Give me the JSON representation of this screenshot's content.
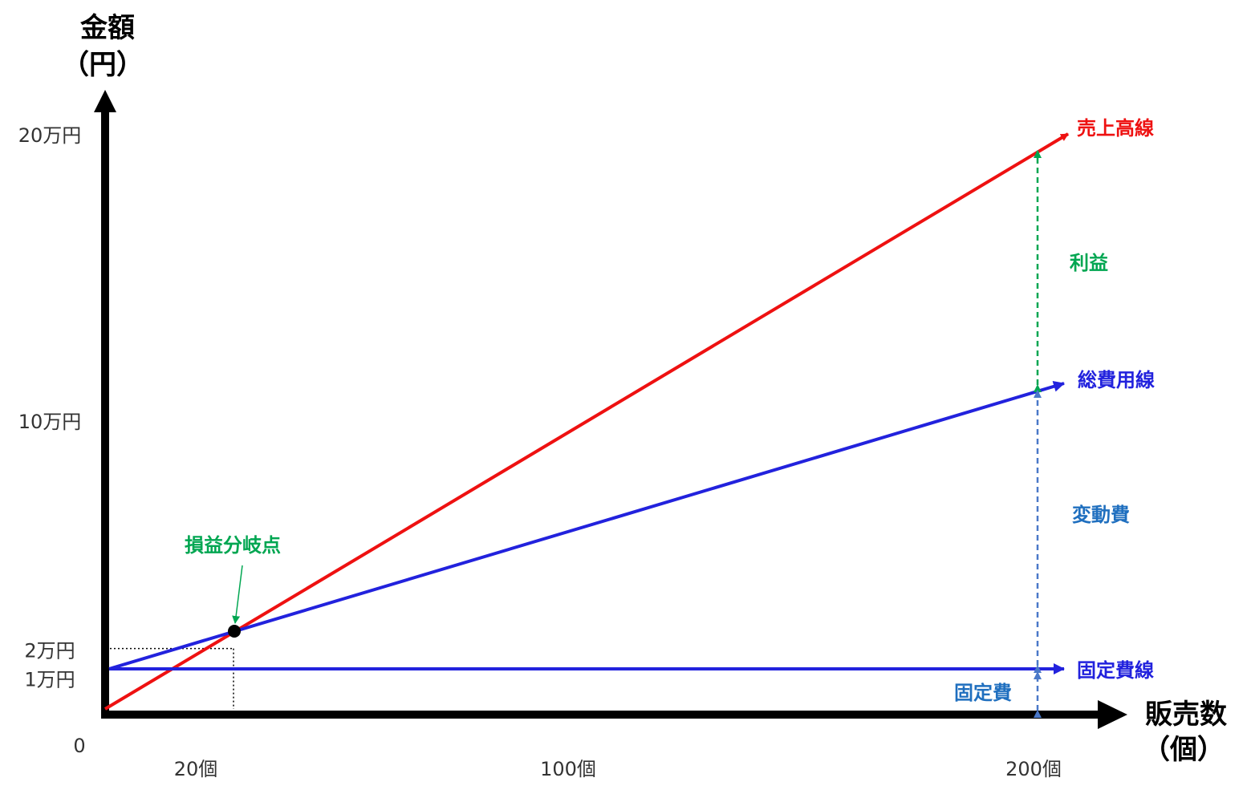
{
  "chart_data": {
    "type": "line",
    "ylabel_line1": "金額",
    "ylabel_line2": "（円）",
    "xlabel_line1": "販売数",
    "xlabel_line2": "（個）",
    "origin_label": "0",
    "y_ticks": [
      {
        "value": 10000,
        "label": "1万円"
      },
      {
        "value": 20000,
        "label": "2万円"
      },
      {
        "value": 100000,
        "label": "10万円"
      },
      {
        "value": 200000,
        "label": "20万円"
      }
    ],
    "x_ticks": [
      {
        "value": 20,
        "label": "20個"
      },
      {
        "value": 100,
        "label": "100個"
      },
      {
        "value": 200,
        "label": "200個"
      }
    ],
    "series": [
      {
        "name": "売上高線",
        "color": "#ee1111",
        "points": [
          [
            0,
            0
          ],
          [
            200,
            200000
          ]
        ]
      },
      {
        "name": "総費用線",
        "color": "#2222dd",
        "points": [
          [
            0,
            10000
          ],
          [
            200,
            110000
          ]
        ]
      },
      {
        "name": "固定費線",
        "color": "#2222dd",
        "points": [
          [
            0,
            10000
          ],
          [
            200,
            10000
          ]
        ]
      }
    ],
    "break_even": {
      "label": "損益分岐点",
      "x": 20,
      "y": 20000,
      "color": "#00a651"
    },
    "annotations": [
      {
        "label": "利益",
        "color": "#00a651",
        "from": 110000,
        "to": 200000,
        "line_color": "#00a651"
      },
      {
        "label": "変動費",
        "color": "#1f6fbf",
        "from": 10000,
        "to": 110000,
        "line_color": "#4a78c8"
      },
      {
        "label": "固定費",
        "color": "#1f6fbf",
        "from": 0,
        "to": 10000,
        "line_color": "#4a78c8"
      }
    ]
  }
}
